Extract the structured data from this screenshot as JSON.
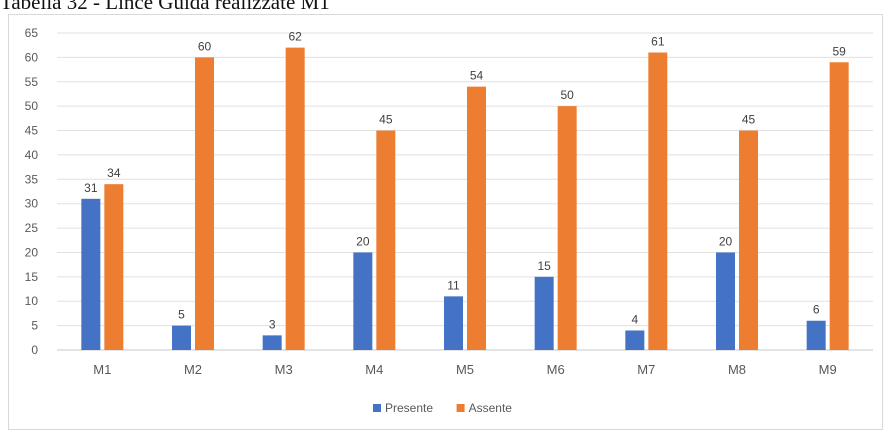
{
  "caption": "Tabella 32 - Lince Guida realizzate M1",
  "chart_data": {
    "type": "bar",
    "title": "",
    "xlabel": "",
    "ylabel": "",
    "categories": [
      "M1",
      "M2",
      "M3",
      "M4",
      "M5",
      "M6",
      "M7",
      "M8",
      "M9"
    ],
    "series": [
      {
        "name": "Presente",
        "color": "#4472c4",
        "values": [
          31,
          5,
          3,
          20,
          11,
          15,
          4,
          20,
          6
        ]
      },
      {
        "name": "Assente",
        "color": "#ed7d31",
        "values": [
          34,
          60,
          62,
          45,
          54,
          50,
          61,
          45,
          59
        ]
      }
    ],
    "ylim": [
      0,
      65
    ],
    "yticks": [
      0,
      5,
      10,
      15,
      20,
      25,
      30,
      35,
      40,
      45,
      50,
      55,
      60,
      65
    ],
    "grid": true,
    "data_labels": true,
    "legend_position": "bottom"
  }
}
